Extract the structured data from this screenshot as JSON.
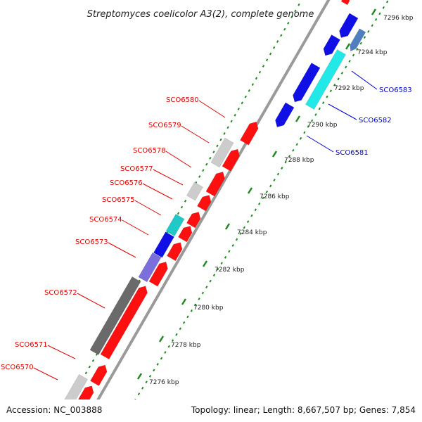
{
  "title": "Streptomyces coelicolor A3(2), complete genome",
  "footer": {
    "accession": "Accession: NC_003888",
    "summary": "Topology: linear; Length: 8,667,507 bp; Genes: 7,854"
  },
  "colors": {
    "backbone": "#9a9a9a",
    "tick": "#1e8a1e",
    "red": "#ff1010",
    "blue": "#1010e6",
    "cyan": "#22e8e8",
    "teal": "#20c8c8",
    "lavender": "#7b6fdc",
    "steel": "#4f7fc0",
    "gray": "#cccccc",
    "darkgray": "#6a6a6a",
    "label_red": "#e00000",
    "label_blue": "#0000cc"
  },
  "ticks": [
    "7276 kbp",
    "7278 kbp",
    "7280 kbp",
    "7282 kbp",
    "7284 kbp",
    "7286 kbp",
    "7288 kbp",
    "7290 kbp",
    "7292 kbp",
    "7294 kbp",
    "7296 kbp"
  ],
  "genes_left_labels": [
    "SCO6570",
    "SCO6571",
    "SCO6572",
    "SCO6573",
    "SCO6574",
    "SCO6575",
    "SCO6576",
    "SCO6577",
    "SCO6578",
    "SCO6579",
    "SCO6580"
  ],
  "genes_right_labels": [
    "SCO6581",
    "SCO6582",
    "SCO6583"
  ]
}
